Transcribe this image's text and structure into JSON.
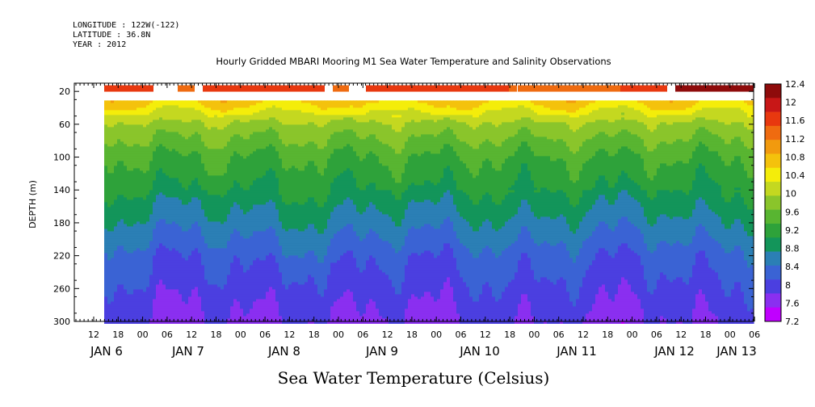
{
  "header": {
    "longitude": "LONGITUDE : 122W(-122)",
    "latitude": "LATITUDE : 36.8N",
    "year": "YEAR : 2012",
    "title": "Hourly Gridded MBARI Mooring M1 Sea Water Temperature and Salinity Observations"
  },
  "chart_data": {
    "type": "heatmap",
    "title": "Hourly Gridded MBARI Mooring M1 Sea Water Temperature and Salinity Observations",
    "xlabel": "",
    "ylabel": "DEPTH (m)",
    "bottom_label": "Sea Water Temperature (Celsius)",
    "x_hour_ticks": [
      "12",
      "18",
      "00",
      "06",
      "12",
      "18",
      "00",
      "06",
      "12",
      "18",
      "00",
      "06",
      "12",
      "18",
      "00",
      "06",
      "12",
      "18",
      "00",
      "06",
      "12",
      "18",
      "00",
      "06",
      "12",
      "18",
      "00",
      "06"
    ],
    "x_day_ticks": [
      "JAN 6",
      "JAN 7",
      "JAN 8",
      "JAN 9",
      "JAN 10",
      "JAN 11",
      "JAN 12",
      "JAN 13"
    ],
    "y_ticks": [
      20,
      60,
      100,
      140,
      180,
      220,
      260,
      300
    ],
    "ylim": [
      300,
      0
    ],
    "colorbar_levels": [
      7.2,
      7.6,
      8,
      8.4,
      8.8,
      9.2,
      9.6,
      10,
      10.4,
      10.8,
      11.2,
      11.6,
      12,
      12.4
    ],
    "colorbar_labels": [
      "12.4",
      "12",
      "11.6",
      "11.2",
      "10.8",
      "10.4",
      "10",
      "9.6",
      "9.2",
      "8.8",
      "8.4",
      "8",
      "7.6",
      "7.2"
    ],
    "colors": [
      "#c000ff",
      "#8a2ff0",
      "#4b3fe0",
      "#3a63d4",
      "#2b7fb5",
      "#13955a",
      "#2ea23a",
      "#58b531",
      "#8ac52b",
      "#c4d820",
      "#f4ed0a",
      "#f4c20c",
      "#f29a0e",
      "#ef6b10",
      "#e8380f",
      "#c81717",
      "#8e0b0b"
    ],
    "depth_profile": [
      {
        "depth": 30,
        "temp": 11.4
      },
      {
        "depth": 60,
        "temp": 10.3
      },
      {
        "depth": 100,
        "temp": 9.6
      },
      {
        "depth": 140,
        "temp": 9.2
      },
      {
        "depth": 180,
        "temp": 8.7
      },
      {
        "depth": 220,
        "temp": 8.2
      },
      {
        "depth": 260,
        "temp": 7.9
      },
      {
        "depth": 300,
        "temp": 7.6
      }
    ]
  }
}
